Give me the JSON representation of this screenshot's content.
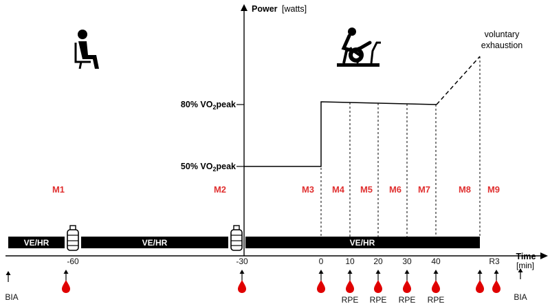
{
  "axes": {
    "y_title": "Power",
    "y_unit": "[watts]",
    "x_title": "Time",
    "x_unit": "[min]"
  },
  "levels": {
    "high": {
      "prefix": "80% VO",
      "sub": "2",
      "suffix": "peak"
    },
    "low": {
      "prefix": "50% VO",
      "sub": "2",
      "suffix": "peak"
    }
  },
  "annotation": {
    "line1": "voluntary",
    "line2": "exhaustion"
  },
  "measurements": [
    "M1",
    "M2",
    "M3",
    "M4",
    "M5",
    "M6",
    "M7",
    "M8",
    "M9"
  ],
  "bars": {
    "label": "VE/HR"
  },
  "time_ticks": [
    "-60",
    "-30",
    "0",
    "10",
    "20",
    "30",
    "40",
    "R3"
  ],
  "bottom": {
    "start": "BIA",
    "end": "BIA",
    "rpe": "RPE"
  },
  "icons": [
    "seated-person-icon",
    "cyclist-on-ergometer-icon",
    "water-bottle-icon",
    "blood-drop-icon",
    "arrow-up-icon"
  ],
  "colors": {
    "accent": "#e03131",
    "ink": "#000000",
    "drop": "#e00000"
  }
}
